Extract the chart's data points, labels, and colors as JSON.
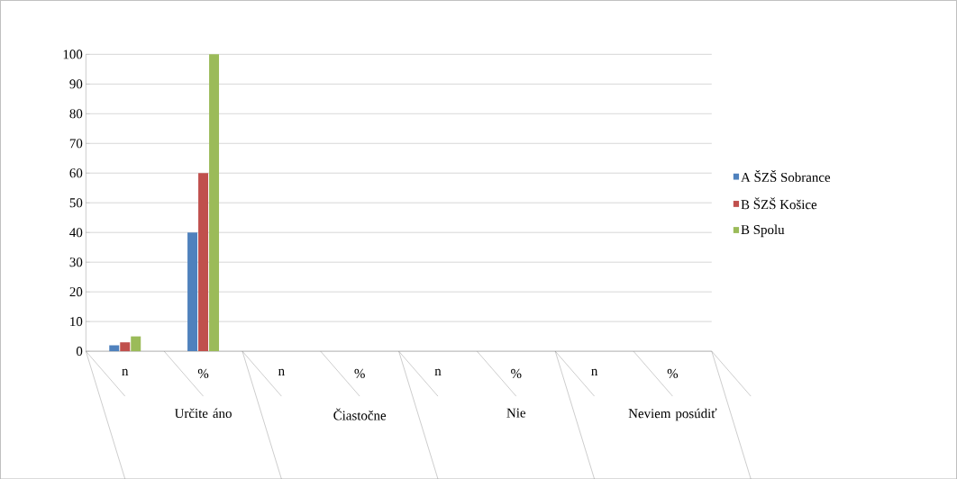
{
  "chart_data": {
    "type": "bar",
    "categories": [
      "n",
      "%",
      "n",
      "%",
      "n",
      "%",
      "n",
      "%"
    ],
    "series": [
      {
        "name": "A ŠZŠ Sobrance",
        "color": "#4f81bd",
        "values": [
          2,
          40,
          0,
          0,
          0,
          0,
          0,
          0
        ]
      },
      {
        "name": "B ŠZŠ Košice",
        "color": "#c0504d",
        "values": [
          3,
          60,
          0,
          0,
          0,
          0,
          0,
          0
        ]
      },
      {
        "name": "B Spolu",
        "color": "#9bbb59",
        "values": [
          5,
          100,
          0,
          0,
          0,
          0,
          0,
          0
        ]
      }
    ],
    "annotations": [
      "Určite áno",
      "Čiastočne",
      "Nie",
      "Neviem posúdiť"
    ],
    "ylim": [
      0,
      100
    ],
    "yticks": [
      0,
      10,
      20,
      30,
      40,
      50,
      60,
      70,
      80,
      90,
      100
    ],
    "grid": "y",
    "legend": "right"
  }
}
